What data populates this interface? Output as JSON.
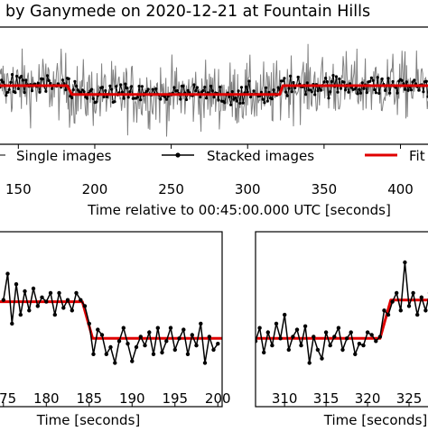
{
  "chart_data": [
    {
      "type": "line",
      "title": "by Ganymede on 2020-12-21 at Fountain Hills",
      "xlabel": "Time relative to 00:45:00.000 UTC [seconds]",
      "ylabel": "",
      "xlim": [
        138,
        418
      ],
      "ylim": [
        -1.0,
        1.0
      ],
      "x_ticks": [
        150,
        200,
        250,
        300,
        350,
        400
      ],
      "x_tick_labels": [
        "150",
        "200",
        "250",
        "300",
        "350",
        "400"
      ],
      "legend": {
        "placement": "below-plot",
        "entries": [
          "Single images",
          "Stacked images",
          "Fit"
        ]
      },
      "series": [
        {
          "name": "Single images",
          "color": "#808080",
          "style": "line",
          "noise_amplitude": 0.55,
          "segments": [
            {
              "x_start": 138,
              "x_end": 183.5,
              "level": 0.0
            },
            {
              "x_start": 183.5,
              "x_end": 322,
              "level": -0.15
            },
            {
              "x_start": 322,
              "x_end": 418,
              "level": 0.0
            }
          ]
        },
        {
          "name": "Stacked images",
          "color": "#000000",
          "style": "line-with-dots",
          "noise_amplitude": 0.09
        },
        {
          "name": "Fit",
          "color": "#e00000",
          "style": "line",
          "points": [
            [
              138,
              0.0
            ],
            [
              182,
              0.0
            ],
            [
              185,
              -0.15
            ],
            [
              321,
              -0.15
            ],
            [
              323,
              0.0
            ],
            [
              418,
              0.0
            ]
          ]
        }
      ]
    },
    {
      "type": "line",
      "title": "",
      "xlabel": "Time [seconds]",
      "ylabel": "",
      "xlim": [
        174.6,
        200.5
      ],
      "ylim": [
        -1.0,
        1.0
      ],
      "x_ticks": [
        175,
        180,
        185,
        190,
        195,
        200
      ],
      "x_tick_labels": [
        "175",
        "180",
        "185",
        "190",
        "195",
        "200"
      ],
      "series": [
        {
          "name": "Stacked images",
          "color": "#000000",
          "style": "line-with-dots",
          "x": [
            175.0,
            175.5,
            176.0,
            176.5,
            177.0,
            177.5,
            178.0,
            178.5,
            179.0,
            179.5,
            180.0,
            180.5,
            181.0,
            181.5,
            182.0,
            182.5,
            183.0,
            183.5,
            184.0,
            184.5,
            185.0,
            185.5,
            186.0,
            186.5,
            187.0,
            187.5,
            188.0,
            188.5,
            189.0,
            189.5,
            190.0,
            190.5,
            191.0,
            191.5,
            192.0,
            192.5,
            193.0,
            193.5,
            194.0,
            194.5,
            195.0,
            195.5,
            196.0,
            196.5,
            197.0,
            197.5,
            198.0,
            198.5,
            199.0,
            199.5,
            200.0
          ],
          "y": [
            0.22,
            0.52,
            -0.05,
            0.4,
            0.05,
            0.32,
            0.1,
            0.35,
            0.15,
            0.25,
            0.2,
            0.3,
            0.05,
            0.3,
            0.13,
            0.22,
            0.1,
            0.3,
            0.22,
            0.15,
            -0.05,
            -0.4,
            -0.12,
            -0.18,
            -0.4,
            -0.32,
            -0.5,
            -0.25,
            -0.1,
            -0.28,
            -0.48,
            -0.32,
            -0.2,
            -0.3,
            -0.15,
            -0.4,
            -0.1,
            -0.38,
            -0.25,
            -0.1,
            -0.35,
            -0.22,
            -0.12,
            -0.4,
            -0.18,
            -0.3,
            -0.05,
            -0.5,
            -0.2,
            -0.35,
            -0.28
          ]
        },
        {
          "name": "Fit",
          "color": "#e00000",
          "style": "line",
          "points": [
            [
              174.6,
              0.2
            ],
            [
              184.2,
              0.2
            ],
            [
              185.4,
              -0.22
            ],
            [
              200.5,
              -0.22
            ]
          ]
        }
      ]
    },
    {
      "type": "line",
      "title": "",
      "xlabel": "Time [seconds]",
      "ylabel": "",
      "xlim": [
        306.5,
        327.5
      ],
      "ylim": [
        -1.0,
        1.0
      ],
      "x_ticks": [
        310,
        315,
        320,
        325
      ],
      "x_tick_labels": [
        "310",
        "315",
        "320",
        "325"
      ],
      "series": [
        {
          "name": "Stacked images",
          "color": "#000000",
          "style": "line-with-dots",
          "x": [
            306.5,
            307.0,
            307.5,
            308.0,
            308.5,
            309.0,
            309.5,
            310.0,
            310.5,
            311.0,
            311.5,
            312.0,
            312.5,
            313.0,
            313.5,
            314.0,
            314.5,
            315.0,
            315.5,
            316.0,
            316.5,
            317.0,
            317.5,
            318.0,
            318.5,
            319.0,
            319.5,
            320.0,
            320.5,
            321.0,
            321.5,
            322.0,
            322.5,
            323.0,
            323.5,
            324.0,
            324.5,
            325.0,
            325.5,
            326.0,
            326.5,
            327.0,
            327.5
          ],
          "y": [
            -0.25,
            -0.1,
            -0.38,
            -0.15,
            -0.3,
            -0.05,
            -0.22,
            0.05,
            -0.35,
            -0.2,
            -0.12,
            -0.3,
            -0.08,
            -0.5,
            -0.2,
            -0.35,
            -0.45,
            -0.15,
            -0.3,
            -0.2,
            -0.1,
            -0.35,
            -0.22,
            -0.15,
            -0.4,
            -0.28,
            -0.3,
            -0.15,
            -0.18,
            -0.25,
            -0.2,
            0.1,
            0.05,
            0.2,
            0.3,
            0.1,
            0.65,
            0.15,
            0.3,
            0.05,
            0.25,
            0.1,
            0.3
          ]
        },
        {
          "name": "Fit",
          "color": "#e00000",
          "style": "line",
          "points": [
            [
              306.5,
              -0.22
            ],
            [
              321.5,
              -0.22
            ],
            [
              322.8,
              0.22
            ],
            [
              327.5,
              0.22
            ]
          ]
        }
      ]
    }
  ]
}
